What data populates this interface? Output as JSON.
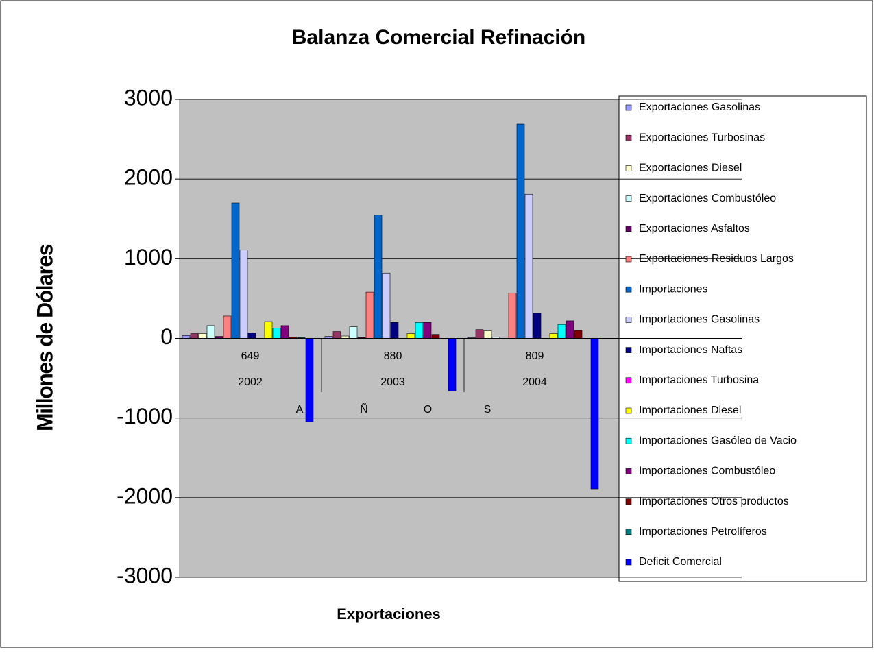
{
  "chart_data": {
    "type": "bar",
    "title": "Balanza Comercial Refinación",
    "x_label": "Exportaciones",
    "y_label": "Millones de Dólares",
    "categories": [
      "2002",
      "2003",
      "2004"
    ],
    "category_values": [
      649,
      880,
      809
    ],
    "axis_letters": [
      "A",
      "Ñ",
      "O",
      "S"
    ],
    "ylim": [
      -3000,
      3000
    ],
    "yticks": [
      -3000,
      -2000,
      -1000,
      0,
      1000,
      2000,
      3000
    ],
    "grid": true,
    "legend": "right",
    "series": [
      {
        "name": "Exportaciones Gasolinas",
        "color": "#9999FF",
        "values": [
          35,
          25,
          10
        ]
      },
      {
        "name": "Exportaciones Turbosinas",
        "color": "#993366",
        "values": [
          60,
          85,
          110
        ]
      },
      {
        "name": "Exportaciones Diesel",
        "color": "#FFFFCC",
        "values": [
          60,
          30,
          95
        ]
      },
      {
        "name": "Exportaciones Combustóleo",
        "color": "#CCFFFF",
        "values": [
          160,
          145,
          15
        ]
      },
      {
        "name": "Exportaciones Asfaltos",
        "color": "#660066",
        "values": [
          25,
          10,
          0
        ]
      },
      {
        "name": "Exportaciones Residuos Largos",
        "color": "#FF8080",
        "values": [
          280,
          580,
          570
        ]
      },
      {
        "name": "Importaciones",
        "color": "#0066CC",
        "values": [
          1700,
          1550,
          2690
        ]
      },
      {
        "name": "Importaciones Gasolinas",
        "color": "#CCCCFF",
        "values": [
          1110,
          820,
          1810
        ]
      },
      {
        "name": "Importaciones Naftas",
        "color": "#000080",
        "values": [
          70,
          200,
          320
        ]
      },
      {
        "name": "Importaciones Turbosina",
        "color": "#FF00FF",
        "values": [
          0,
          0,
          0
        ]
      },
      {
        "name": "Importaciones Diesel",
        "color": "#FFFF00",
        "values": [
          210,
          60,
          60
        ]
      },
      {
        "name": "Importaciones Gasóleo de Vacio",
        "color": "#00FFFF",
        "values": [
          130,
          200,
          175
        ]
      },
      {
        "name": "Importaciones Combustóleo",
        "color": "#800080",
        "values": [
          160,
          200,
          220
        ]
      },
      {
        "name": "Importaciones Otros productos",
        "color": "#800000",
        "values": [
          15,
          50,
          100
        ]
      },
      {
        "name": "Importaciones Petrolíferos",
        "color": "#008080",
        "values": [
          10,
          0,
          0
        ]
      },
      {
        "name": "Deficit Comercial",
        "color": "#0000FF",
        "values": [
          -1050,
          -660,
          -1890
        ]
      }
    ]
  }
}
